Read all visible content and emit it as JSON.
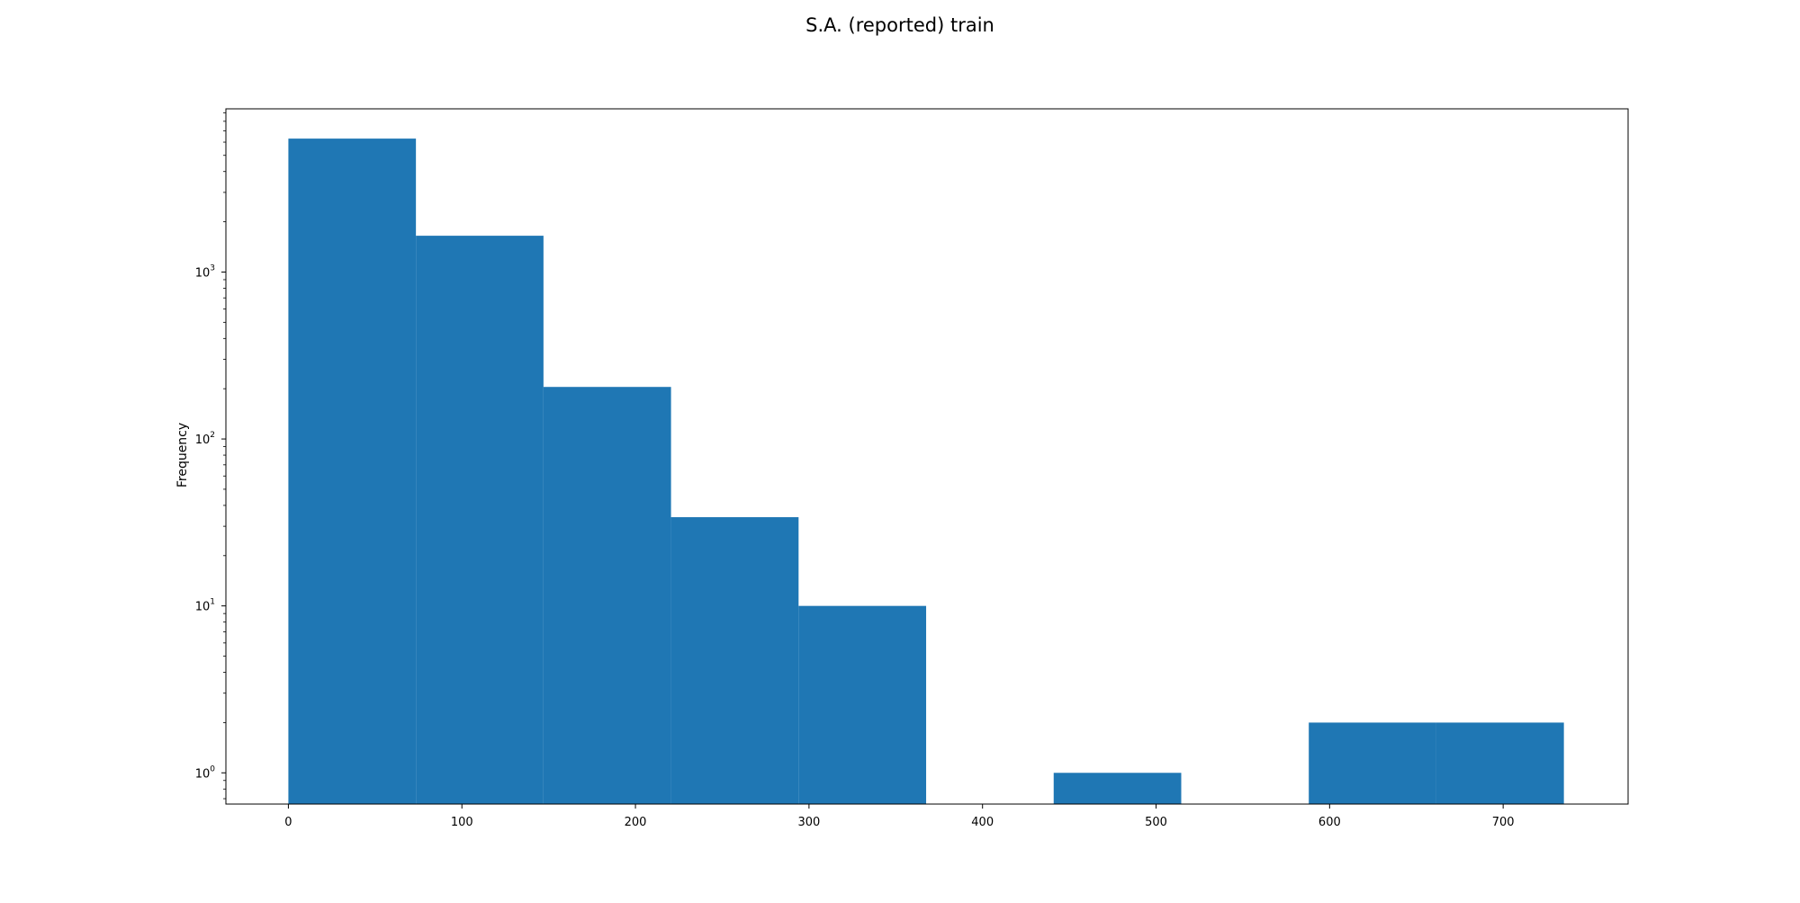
{
  "chart_data": {
    "type": "bar",
    "title": "S.A. (reported) train",
    "xlabel": "",
    "ylabel": "Frequency",
    "yscale": "log",
    "bar_color": "#1f77b4",
    "grid": false,
    "bins": [
      {
        "x0": 0,
        "x1": 73.5,
        "value": 6300
      },
      {
        "x0": 73.5,
        "x1": 147,
        "value": 1650
      },
      {
        "x0": 147,
        "x1": 220.5,
        "value": 205
      },
      {
        "x0": 220.5,
        "x1": 294,
        "value": 34
      },
      {
        "x0": 294,
        "x1": 367.5,
        "value": 10
      },
      {
        "x0": 367.5,
        "x1": 441,
        "value": 0
      },
      {
        "x0": 441,
        "x1": 514.5,
        "value": 1
      },
      {
        "x0": 514.5,
        "x1": 588,
        "value": 0
      },
      {
        "x0": 588,
        "x1": 661.5,
        "value": 2
      },
      {
        "x0": 661.5,
        "x1": 735,
        "value": 2
      }
    ],
    "xlim": [
      -36,
      772
    ],
    "ylim": [
      0.65,
      9500
    ],
    "xticks": [
      {
        "value": 0,
        "label": "0"
      },
      {
        "value": 100,
        "label": "100"
      },
      {
        "value": 200,
        "label": "200"
      },
      {
        "value": 300,
        "label": "300"
      },
      {
        "value": 400,
        "label": "400"
      },
      {
        "value": 500,
        "label": "500"
      },
      {
        "value": 600,
        "label": "600"
      },
      {
        "value": 700,
        "label": "700"
      }
    ],
    "yticks": [
      {
        "value": 1,
        "base": "10",
        "exp": "0"
      },
      {
        "value": 10,
        "base": "10",
        "exp": "1"
      },
      {
        "value": 100,
        "base": "10",
        "exp": "2"
      },
      {
        "value": 1000,
        "base": "10",
        "exp": "3"
      }
    ]
  }
}
